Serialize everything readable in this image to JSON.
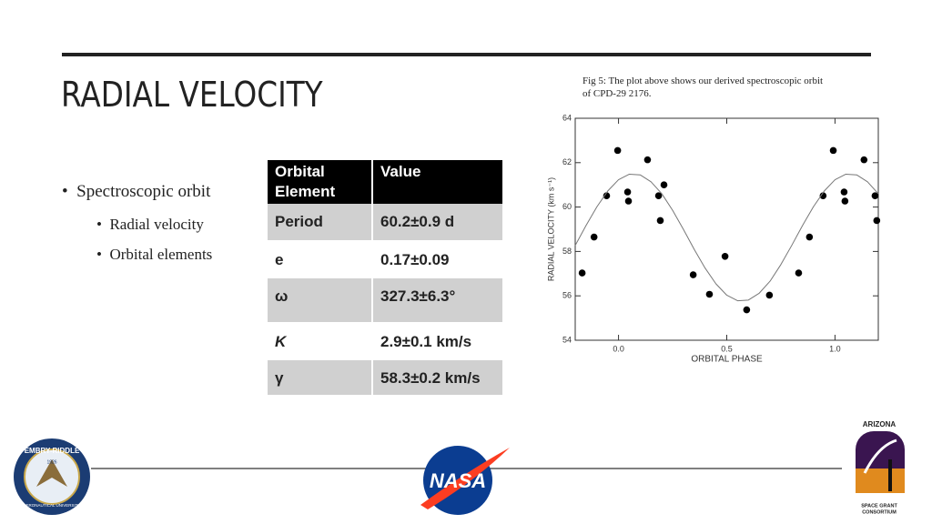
{
  "title": "RADIAL VELOCITY",
  "bullets": [
    {
      "text": "Spectroscopic orbit",
      "children": [
        "Radial velocity",
        "Orbital elements"
      ]
    }
  ],
  "table": {
    "header": [
      "Orbital Element",
      "Value"
    ],
    "rows": [
      [
        "Period",
        "60.2±0.9 d"
      ],
      [
        "e",
        "0.17±0.09"
      ],
      [
        "ω",
        "327.3±6.3°"
      ],
      [
        "K",
        "2.9±0.1 km/s"
      ],
      [
        "γ",
        "58.3±0.2 km/s"
      ]
    ]
  },
  "caption": "Fig 5: The plot above shows our derived spectroscopic orbit of CPD-29 2176.",
  "logos": {
    "left": [
      "EMBRY-RIDDLE",
      "AERONAUTICAL UNIVERSITY",
      "1926"
    ],
    "center": "NASA",
    "right": [
      "ARIZONA",
      "SPACE GRANT",
      "CONSORTIUM"
    ]
  },
  "chart_data": {
    "type": "scatter",
    "xlabel": "ORBITAL PHASE",
    "ylabel": "RADIAL VELOCITY (km s⁻¹)",
    "xlim": [
      -0.2,
      1.2
    ],
    "ylim": [
      54,
      64
    ],
    "xticks": [
      {
        "value": 0,
        "label": "0.0"
      },
      0.5,
      {
        "value": 1,
        "label": "1.0"
      }
    ],
    "yticks": [
      54,
      56,
      58,
      60,
      62,
      64
    ],
    "series": [
      {
        "mode": "markers",
        "color": "#000000",
        "x": [
          -0.168,
          -0.113,
          -0.055,
          -0.004,
          0.042,
          0.046,
          0.134,
          0.185,
          0.21,
          0.193,
          0.345,
          0.42,
          0.492,
          0.592,
          0.697,
          0.832,
          0.882,
          0.945,
          0.992,
          1.042,
          1.046,
          1.134,
          1.185,
          1.193
        ],
        "values": [
          57.03,
          58.65,
          60.51,
          62.55,
          60.68,
          60.27,
          62.13,
          60.51,
          61.0,
          59.39,
          56.95,
          56.07,
          57.78,
          55.37,
          56.03,
          57.03,
          58.65,
          60.51,
          62.55,
          60.68,
          60.27,
          62.13,
          60.51,
          59.39
        ]
      },
      {
        "mode": "line",
        "color": "#777777",
        "x": [
          -0.2,
          -0.15,
          -0.1,
          -0.05,
          0,
          0.05,
          0.1,
          0.15,
          0.2,
          0.25,
          0.3,
          0.35,
          0.4,
          0.45,
          0.5,
          0.55,
          0.6,
          0.65,
          0.7,
          0.75,
          0.8,
          0.85,
          0.9,
          0.95,
          1,
          1.05,
          1.1,
          1.15,
          1.2
        ],
        "values": [
          58.27,
          59.17,
          60.01,
          60.72,
          61.23,
          61.48,
          61.45,
          61.14,
          60.6,
          59.85,
          58.99,
          58.09,
          57.25,
          56.54,
          56.03,
          55.78,
          55.81,
          56.12,
          56.66,
          57.41,
          58.27,
          59.17,
          60.01,
          60.72,
          61.23,
          61.48,
          61.45,
          61.14,
          60.6
        ]
      }
    ]
  }
}
